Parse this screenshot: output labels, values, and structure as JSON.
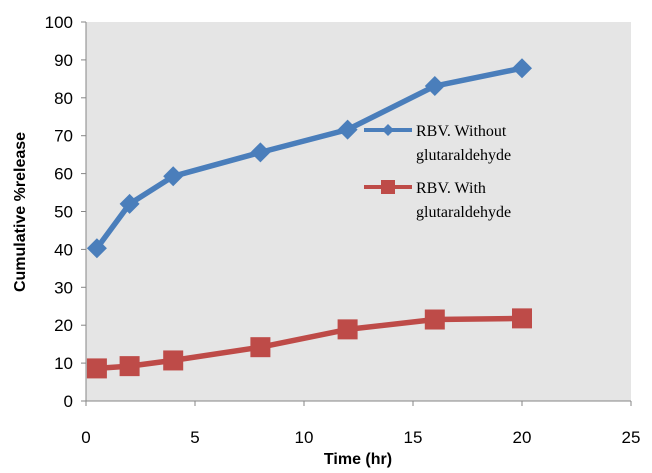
{
  "chart_data": {
    "type": "line",
    "title": "",
    "xlabel": "Time (hr)",
    "ylabel": "Cumulative %release",
    "xlim": [
      0,
      25
    ],
    "ylim": [
      0,
      100
    ],
    "xticks": [
      0,
      5,
      10,
      15,
      20,
      25
    ],
    "yticks": [
      0,
      10,
      20,
      30,
      40,
      50,
      60,
      70,
      80,
      90,
      100
    ],
    "grid": false,
    "plot_background": "#e5e5e5",
    "legend_position": "right",
    "series": [
      {
        "name_lines": [
          "RBV. Without",
          "glutaraldehyde"
        ],
        "color": "#4a7ebb",
        "marker": "diamond",
        "x": [
          0.5,
          2,
          4,
          8,
          12,
          16,
          20
        ],
        "y": [
          40.3,
          52,
          59.3,
          65.6,
          71.6,
          83.1,
          87.8
        ]
      },
      {
        "name_lines": [
          "RBV. With",
          "glutaraldehyde"
        ],
        "color": "#be4b48",
        "marker": "square",
        "x": [
          0.5,
          2,
          4,
          8,
          12,
          16,
          20
        ],
        "y": [
          8.6,
          9.2,
          10.7,
          14.2,
          18.9,
          21.5,
          21.8
        ]
      }
    ]
  }
}
